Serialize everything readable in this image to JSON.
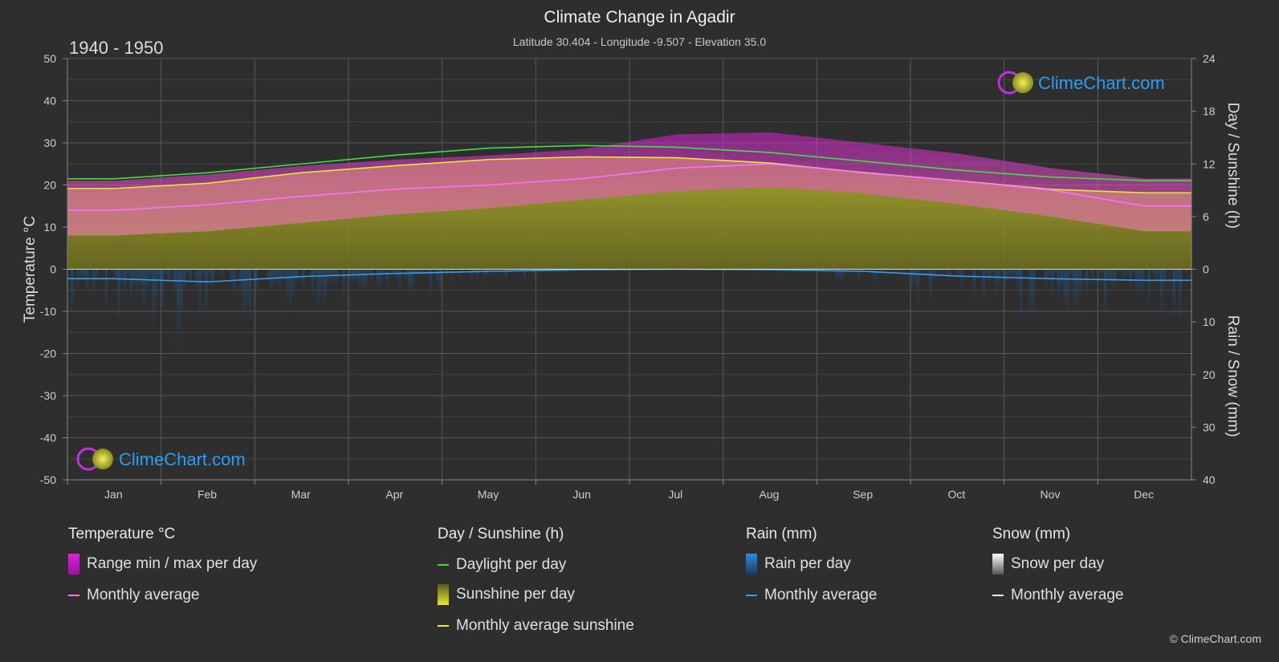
{
  "header": {
    "title": "Climate Change in Agadir",
    "subtitle": "Latitude 30.404 - Longitude -9.507 - Elevation 35.0",
    "period": "1940 - 1950"
  },
  "brand": {
    "name": "ClimeChart.com",
    "copyright": "© ClimeChart.com"
  },
  "colors": {
    "background": "#2e2e2e",
    "temp_range": "#e020e0",
    "temp_avg": "#ff70ff",
    "daylight": "#44dd44",
    "sunshine_fill": "#a8a820",
    "sunshine_avg": "#e8e830",
    "rain": "#2a7fd4",
    "rain_avg": "#3b9cf0",
    "snow": "#dddddd",
    "brand_text": "#2a9df4"
  },
  "legend": {
    "temperature": {
      "title": "Temperature °C",
      "range_label": "Range min / max per day",
      "avg_label": "Monthly average"
    },
    "sunshine": {
      "title": "Day / Sunshine (h)",
      "daylight_label": "Daylight per day",
      "sunshine_label": "Sunshine per day",
      "avg_label": "Monthly average sunshine"
    },
    "rain": {
      "title": "Rain (mm)",
      "rain_label": "Rain per day",
      "avg_label": "Monthly average"
    },
    "snow": {
      "title": "Snow (mm)",
      "snow_label": "Snow per day",
      "avg_label": "Monthly average"
    }
  },
  "chart_data": {
    "type": "area",
    "categories": [
      "Jan",
      "Feb",
      "Mar",
      "Apr",
      "May",
      "Jun",
      "Jul",
      "Aug",
      "Sep",
      "Oct",
      "Nov",
      "Dec"
    ],
    "left_axis": {
      "label": "Temperature °C",
      "ticks": [
        50,
        40,
        30,
        20,
        10,
        0,
        -10,
        -20,
        -30,
        -40,
        -50
      ],
      "range": [
        -50,
        50
      ]
    },
    "right_axis_top": {
      "label": "Day / Sunshine (h)",
      "ticks": [
        24,
        18,
        12,
        6,
        0
      ],
      "range": [
        0,
        24
      ]
    },
    "right_axis_bottom": {
      "label": "Rain / Snow (mm)",
      "ticks": [
        0,
        10,
        20,
        30,
        40
      ],
      "range": [
        0,
        40
      ]
    },
    "grid": true,
    "series": [
      {
        "name": "Daylight per day",
        "axis": "sunshine_h",
        "values": [
          10.3,
          11.0,
          12.0,
          13.0,
          13.8,
          14.1,
          13.9,
          13.3,
          12.3,
          11.3,
          10.5,
          10.1
        ]
      },
      {
        "name": "Monthly average sunshine",
        "axis": "sunshine_h",
        "values": [
          9.2,
          9.8,
          11.0,
          11.8,
          12.5,
          12.8,
          12.7,
          12.1,
          11.0,
          10.1,
          9.1,
          8.7
        ]
      },
      {
        "name": "Monthly average",
        "axis": "temperature_c",
        "values": [
          14.0,
          15.3,
          17.3,
          19.0,
          20.0,
          21.5,
          24.0,
          25.0,
          23.0,
          21.0,
          18.8,
          15.0
        ]
      },
      {
        "name": "Range min / max per day (min)",
        "axis": "temperature_c",
        "values": [
          8.0,
          9.0,
          11.0,
          13.0,
          14.5,
          16.5,
          18.5,
          19.5,
          18.0,
          15.5,
          12.5,
          9.0
        ]
      },
      {
        "name": "Range min / max per day (max)",
        "axis": "temperature_c",
        "values": [
          21.0,
          22.5,
          24.5,
          26.0,
          27.0,
          28.5,
          32.0,
          32.5,
          30.0,
          27.5,
          24.0,
          21.5
        ]
      },
      {
        "name": "Rain monthly average",
        "axis": "rain_mm",
        "values": [
          1.8,
          2.4,
          1.4,
          0.8,
          0.4,
          0.1,
          0.0,
          0.1,
          0.4,
          1.3,
          1.8,
          2.1
        ]
      },
      {
        "name": "Snow monthly average",
        "axis": "rain_mm",
        "values": [
          0,
          0,
          0,
          0,
          0,
          0,
          0,
          0,
          0,
          0,
          0,
          0
        ]
      }
    ]
  }
}
